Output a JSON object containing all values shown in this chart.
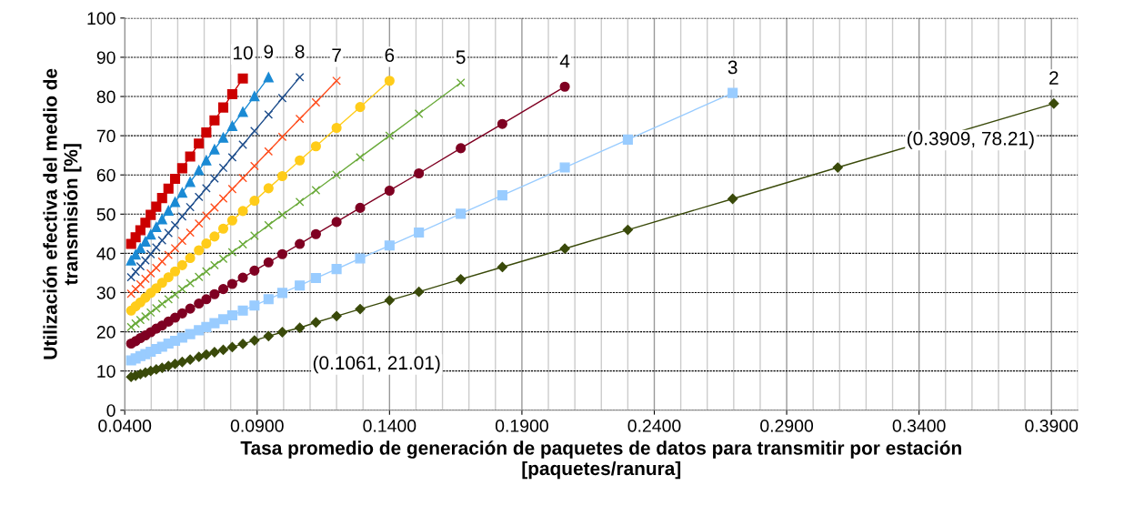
{
  "chart_data": {
    "type": "line",
    "xlabel": "Tasa promedio de generación de paquetes de datos para transmitir por estación\n[paquetes/ranura]",
    "ylabel": "Utilización efectiva del medio de\ntransmisión [%]",
    "series": [
      {
        "name": "10",
        "color": "#cc0000",
        "marker": "square",
        "x": [
          0.0424,
          0.0441,
          0.0459,
          0.0478,
          0.0498,
          0.0519,
          0.0541,
          0.0565,
          0.059,
          0.0617,
          0.0647,
          0.068,
          0.0708,
          0.0739,
          0.0772,
          0.0806,
          0.0846
        ],
        "values": [
          42.4,
          44.1,
          45.9,
          47.8,
          49.8,
          51.9,
          54.1,
          56.5,
          59.0,
          61.7,
          64.7,
          68.0,
          70.8,
          73.9,
          77.2,
          80.6,
          84.6
        ]
      },
      {
        "name": "9",
        "color": "#1a8ad4",
        "marker": "triangle",
        "x": [
          0.0424,
          0.0441,
          0.0459,
          0.0478,
          0.0498,
          0.0519,
          0.0541,
          0.0565,
          0.059,
          0.0617,
          0.0647,
          0.068,
          0.0708,
          0.0739,
          0.0772,
          0.0806,
          0.0846,
          0.089,
          0.0943
        ],
        "values": [
          38.2,
          39.7,
          41.3,
          43.0,
          44.8,
          46.7,
          48.7,
          50.9,
          53.1,
          55.5,
          58.2,
          61.2,
          63.7,
          66.5,
          69.5,
          72.5,
          76.1,
          80.1,
          84.9
        ]
      },
      {
        "name": "8",
        "color": "#1f4e8c",
        "marker": "cross",
        "x": [
          0.0424,
          0.0441,
          0.0459,
          0.0478,
          0.0498,
          0.0519,
          0.0541,
          0.0565,
          0.059,
          0.0617,
          0.0647,
          0.068,
          0.0708,
          0.0739,
          0.0772,
          0.0806,
          0.0846,
          0.089,
          0.0943,
          0.0995,
          0.1061
        ],
        "values": [
          33.9,
          35.3,
          36.7,
          38.2,
          39.8,
          41.5,
          43.3,
          45.2,
          47.2,
          49.4,
          51.8,
          54.4,
          56.6,
          59.1,
          61.8,
          64.5,
          67.7,
          71.2,
          75.4,
          79.6,
          84.9
        ]
      },
      {
        "name": "7",
        "color": "#ff4f1f",
        "marker": "cross",
        "x": [
          0.0424,
          0.0441,
          0.0459,
          0.0478,
          0.0498,
          0.0519,
          0.0541,
          0.0565,
          0.059,
          0.0617,
          0.0647,
          0.068,
          0.0708,
          0.0739,
          0.0772,
          0.0806,
          0.0846,
          0.089,
          0.0943,
          0.0995,
          0.1061,
          0.1122,
          0.12
        ],
        "values": [
          29.7,
          30.9,
          32.1,
          33.5,
          34.9,
          36.3,
          37.9,
          39.6,
          41.3,
          43.2,
          45.3,
          47.6,
          49.6,
          51.7,
          54.0,
          56.4,
          59.2,
          62.3,
          66.0,
          69.7,
          74.3,
          78.5,
          84.0
        ]
      },
      {
        "name": "6",
        "color": "#ffcc1a",
        "marker": "circle",
        "x": [
          0.0424,
          0.0441,
          0.0459,
          0.0478,
          0.0498,
          0.0519,
          0.0541,
          0.0565,
          0.059,
          0.0617,
          0.0647,
          0.068,
          0.0708,
          0.0739,
          0.0772,
          0.0806,
          0.0846,
          0.089,
          0.0943,
          0.0995,
          0.1061,
          0.1122,
          0.12,
          0.1289,
          0.14
        ],
        "values": [
          25.4,
          26.5,
          27.5,
          28.7,
          29.9,
          31.1,
          32.5,
          33.9,
          35.4,
          37.0,
          38.8,
          40.8,
          42.5,
          44.3,
          46.3,
          48.4,
          50.8,
          53.4,
          56.6,
          59.7,
          63.7,
          67.3,
          72.0,
          77.3,
          84.0
        ]
      },
      {
        "name": "5",
        "color": "#6aaa3a",
        "marker": "cross",
        "x": [
          0.0424,
          0.0441,
          0.0459,
          0.0478,
          0.0498,
          0.0519,
          0.0541,
          0.0565,
          0.059,
          0.0617,
          0.0647,
          0.068,
          0.0708,
          0.0739,
          0.0772,
          0.0806,
          0.0846,
          0.089,
          0.0943,
          0.0995,
          0.1061,
          0.1122,
          0.12,
          0.1289,
          0.14,
          0.1511,
          0.1669
        ],
        "values": [
          21.2,
          22.1,
          23.0,
          23.9,
          24.9,
          26.0,
          27.1,
          28.3,
          29.5,
          30.9,
          32.4,
          34.0,
          35.4,
          37.0,
          38.6,
          40.3,
          42.3,
          44.5,
          47.2,
          49.8,
          53.1,
          56.1,
          60.0,
          64.5,
          70.0,
          75.6,
          83.5
        ]
      },
      {
        "name": "4",
        "color": "#7f0022",
        "marker": "circle",
        "x": [
          0.0424,
          0.0441,
          0.0459,
          0.0478,
          0.0498,
          0.0519,
          0.0541,
          0.0565,
          0.059,
          0.0617,
          0.0647,
          0.068,
          0.0708,
          0.0739,
          0.0772,
          0.0806,
          0.0846,
          0.089,
          0.0943,
          0.0995,
          0.1061,
          0.1122,
          0.12,
          0.1289,
          0.14,
          0.1511,
          0.1669,
          0.1826,
          0.2062
        ],
        "values": [
          17.0,
          17.6,
          18.4,
          19.1,
          19.9,
          20.8,
          21.6,
          22.6,
          23.6,
          24.7,
          25.9,
          27.2,
          28.3,
          29.6,
          30.9,
          32.2,
          33.8,
          35.6,
          37.7,
          39.8,
          42.4,
          44.9,
          48.0,
          51.6,
          56.0,
          60.4,
          66.8,
          73.0,
          82.5
        ]
      },
      {
        "name": "3",
        "color": "#99ccff",
        "marker": "square",
        "x": [
          0.0424,
          0.0441,
          0.0459,
          0.0478,
          0.0498,
          0.0519,
          0.0541,
          0.0565,
          0.059,
          0.0617,
          0.0647,
          0.068,
          0.0708,
          0.0739,
          0.0772,
          0.0806,
          0.0846,
          0.089,
          0.0943,
          0.0995,
          0.1061,
          0.1122,
          0.12,
          0.1289,
          0.14,
          0.1511,
          0.1669,
          0.1826,
          0.2062,
          0.23,
          0.2696
        ],
        "values": [
          12.7,
          13.2,
          13.8,
          14.3,
          14.9,
          15.6,
          16.2,
          17.0,
          17.7,
          18.5,
          19.4,
          20.4,
          21.2,
          22.2,
          23.2,
          24.2,
          25.4,
          26.7,
          28.3,
          29.9,
          31.8,
          33.7,
          36.0,
          38.7,
          42.0,
          45.3,
          50.1,
          54.8,
          61.9,
          69.0,
          80.9
        ]
      },
      {
        "name": "2",
        "color": "#3a4a0a",
        "marker": "diamond",
        "x": [
          0.0424,
          0.0441,
          0.0459,
          0.0478,
          0.0498,
          0.0519,
          0.0541,
          0.0565,
          0.059,
          0.0617,
          0.0647,
          0.068,
          0.0708,
          0.0739,
          0.0772,
          0.0806,
          0.0846,
          0.089,
          0.0943,
          0.0995,
          0.1061,
          0.1122,
          0.12,
          0.1289,
          0.14,
          0.1511,
          0.1669,
          0.1826,
          0.2062,
          0.23,
          0.2696,
          0.3093,
          0.3909
        ],
        "values": [
          8.5,
          8.8,
          9.2,
          9.6,
          10.0,
          10.4,
          10.8,
          11.3,
          11.8,
          12.3,
          12.9,
          13.6,
          14.2,
          14.8,
          15.4,
          16.1,
          16.9,
          17.8,
          18.9,
          19.9,
          21.01,
          22.4,
          24.0,
          25.8,
          28.0,
          30.2,
          33.4,
          36.5,
          41.2,
          46.0,
          53.9,
          61.9,
          78.21
        ]
      }
    ],
    "annotations": [
      {
        "text": "(0.1061, 21.01)",
        "x": 0.1061,
        "y": 21.01
      },
      {
        "text": "(0.3909, 78.21)",
        "x": 0.3909,
        "y": 78.21
      }
    ],
    "xlim": [
      0.04,
      0.4
    ],
    "xticks": [
      {
        "value": 0.04,
        "label": "0.0400"
      },
      {
        "value": 0.05,
        "label": null
      },
      {
        "value": 0.06,
        "label": null
      },
      {
        "value": 0.07,
        "label": null
      },
      {
        "value": 0.08,
        "label": null
      },
      {
        "value": 0.09,
        "label": "0.0900"
      },
      {
        "value": 0.1,
        "label": null
      },
      {
        "value": 0.11,
        "label": null
      },
      {
        "value": 0.12,
        "label": null
      },
      {
        "value": 0.13,
        "label": null
      },
      {
        "value": 0.14,
        "label": "0.1400"
      },
      {
        "value": 0.15,
        "label": null
      },
      {
        "value": 0.16,
        "label": null
      },
      {
        "value": 0.17,
        "label": null
      },
      {
        "value": 0.18,
        "label": null
      },
      {
        "value": 0.19,
        "label": "0.1900"
      },
      {
        "value": 0.2,
        "label": null
      },
      {
        "value": 0.21,
        "label": null
      },
      {
        "value": 0.22,
        "label": null
      },
      {
        "value": 0.23,
        "label": null
      },
      {
        "value": 0.24,
        "label": "0.2400"
      },
      {
        "value": 0.25,
        "label": null
      },
      {
        "value": 0.26,
        "label": null
      },
      {
        "value": 0.27,
        "label": null
      },
      {
        "value": 0.28,
        "label": null
      },
      {
        "value": 0.29,
        "label": "0.2900"
      },
      {
        "value": 0.3,
        "label": null
      },
      {
        "value": 0.31,
        "label": null
      },
      {
        "value": 0.32,
        "label": null
      },
      {
        "value": 0.33,
        "label": null
      },
      {
        "value": 0.34,
        "label": "0.3400"
      },
      {
        "value": 0.35,
        "label": null
      },
      {
        "value": 0.36,
        "label": null
      },
      {
        "value": 0.37,
        "label": null
      },
      {
        "value": 0.38,
        "label": null
      },
      {
        "value": 0.39,
        "label": "0.3900"
      },
      {
        "value": 0.4,
        "label": null
      }
    ],
    "ylim": [
      0,
      100
    ],
    "yticks": [
      0,
      10,
      20,
      30,
      40,
      50,
      60,
      70,
      80,
      90,
      100
    ],
    "grid": true,
    "legend": false,
    "line_style": "solid"
  }
}
